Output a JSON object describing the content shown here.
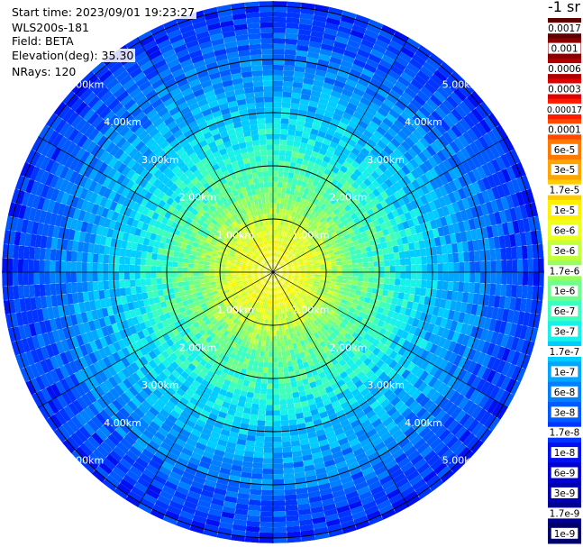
{
  "info": {
    "start_time": "Start time: 2023/09/01 19:23:27",
    "device": "WLS200s-181",
    "field": "Field: BETA",
    "elevation": "Elevation(deg): 35.30",
    "nrays": "NRays: 120"
  },
  "chart_data": {
    "type": "heatmap",
    "projection": "polar-ppi",
    "field": "BETA",
    "unit": "-1 sr",
    "n_rays": 120,
    "rings_km": [
      1,
      2,
      3,
      4,
      5
    ],
    "ring_labels": [
      "1.00km",
      "2.00km",
      "3.00km",
      "4.00km",
      "5.00km"
    ],
    "max_range_km": 5.1,
    "spokes_deg": [
      0,
      30,
      60,
      90,
      120,
      150,
      180,
      210,
      240,
      270,
      300,
      330
    ],
    "radial_profile": [
      {
        "range_km": 0.5,
        "value": 6e-06
      },
      {
        "range_km": 1.0,
        "value": 3e-06
      },
      {
        "range_km": 1.5,
        "value": 1e-06
      },
      {
        "range_km": 2.0,
        "value": 6e-07
      },
      {
        "range_km": 2.5,
        "value": 3e-07
      },
      {
        "range_km": 3.0,
        "value": 1.7e-07
      },
      {
        "range_km": 3.5,
        "value": 1e-07
      },
      {
        "range_km": 4.0,
        "value": 6e-08
      },
      {
        "range_km": 4.5,
        "value": 3e-08
      },
      {
        "range_km": 5.0,
        "value": 2e-08
      }
    ],
    "colorbar": {
      "title": "-1 sr",
      "ticks": [
        "0.0017",
        "0.001",
        "0.0006",
        "0.0003",
        "0.00017",
        "0.0001",
        "6e-5",
        "3e-5",
        "1.7e-5",
        "1e-5",
        "6e-6",
        "3e-6",
        "1.7e-6",
        "1e-6",
        "6e-7",
        "3e-7",
        "1.7e-7",
        "1e-7",
        "6e-8",
        "3e-8",
        "1.7e-8",
        "1e-8",
        "6e-9",
        "3e-9",
        "1.7e-9",
        "1e-9"
      ],
      "colors": [
        "#5e0000",
        "#8a0000",
        "#b20000",
        "#e00000",
        "#ff1a00",
        "#ff4800",
        "#ff7800",
        "#ffa300",
        "#ffcc00",
        "#fff000",
        "#ecff1e",
        "#c2ff3c",
        "#96ff60",
        "#6cff8c",
        "#3cffbe",
        "#18f0ea",
        "#00ccff",
        "#00a6ff",
        "#0080ff",
        "#005aff",
        "#0034ff",
        "#0010f0",
        "#0000d2",
        "#0000b0",
        "#00008e",
        "#00006a"
      ]
    }
  }
}
